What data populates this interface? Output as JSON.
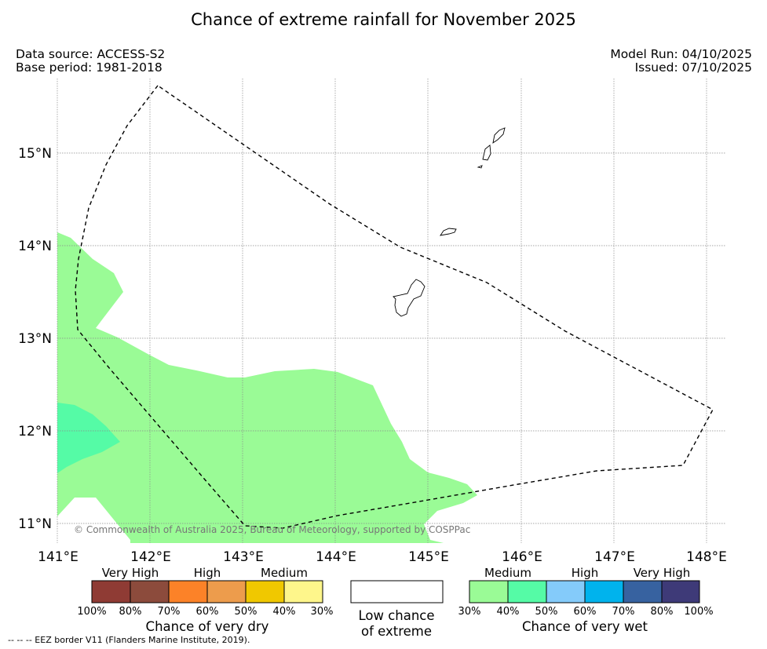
{
  "title": "Chance of extreme rainfall for November 2025",
  "meta": {
    "data_source": "Data source: ACCESS-S2",
    "base_period": "Base period: 1981-2018",
    "model_run": "Model Run: 04/10/2025",
    "issued": "Issued: 07/10/2025"
  },
  "map": {
    "lat_labels": [
      "15°N",
      "14°N",
      "13°N",
      "12°N",
      "11°N"
    ],
    "lon_labels": [
      "141°E",
      "142°E",
      "143°E",
      "144°E",
      "145°E",
      "146°E",
      "147°E",
      "148°E"
    ],
    "copyright": "© Commonwealth of Australia 2025, Bureau of Meteorology, supported by COSPPac",
    "colors": {
      "medium_wet": "#9afb96",
      "high_wet": "#55fba6"
    }
  },
  "legend": {
    "dry": {
      "categories": [
        "Very High",
        "High",
        "Medium"
      ],
      "colors": [
        "#8f3b34",
        "#8c4b3c",
        "#fc8228",
        "#ed9c4c",
        "#f0c800",
        "#fef68b"
      ],
      "percents": [
        "100%",
        "80%",
        "70%",
        "60%",
        "50%",
        "40%",
        "30%"
      ],
      "caption": "Chance of very dry"
    },
    "low": {
      "line1": "Low chance",
      "line2": "of extreme"
    },
    "wet": {
      "categories": [
        "Medium",
        "High",
        "Very High"
      ],
      "colors": [
        "#9afb96",
        "#55fba6",
        "#84cbfa",
        "#00b3ed",
        "#3762a0",
        "#3e3a78"
      ],
      "percents": [
        "30%",
        "40%",
        "50%",
        "60%",
        "70%",
        "80%",
        "100%"
      ],
      "caption": "Chance of very wet"
    }
  },
  "eez_note": "--  --  -- EEZ border V11 (Flanders Marine Institute, 2019)."
}
